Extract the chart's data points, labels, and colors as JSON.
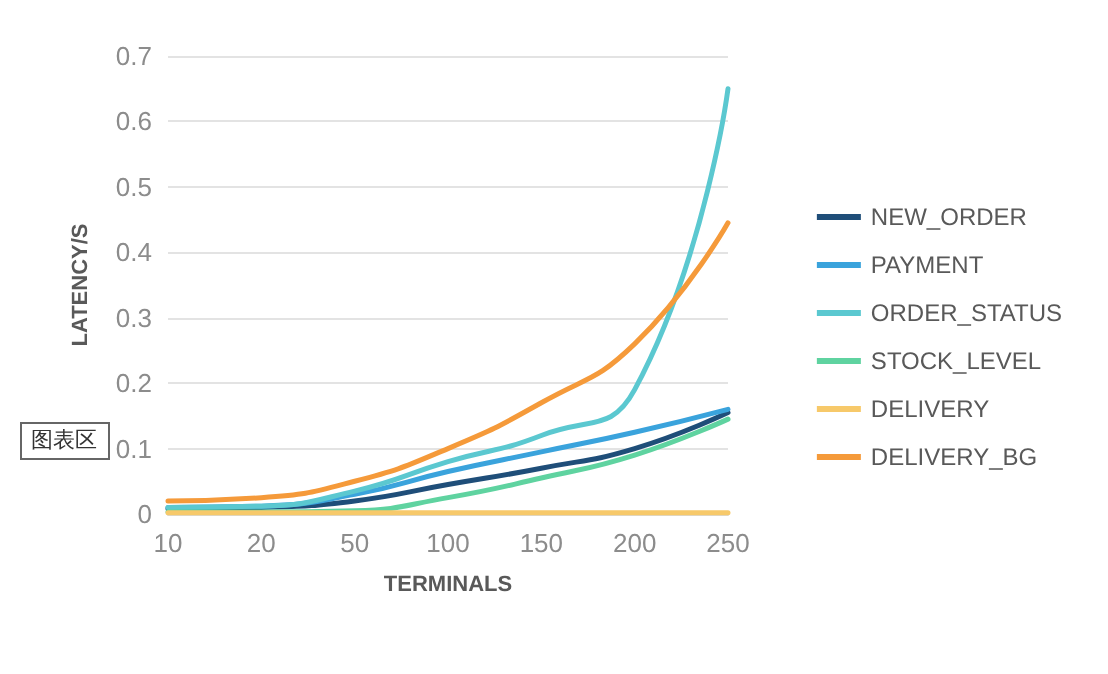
{
  "chart_data": {
    "type": "line",
    "xlabel": "TERMINALS",
    "ylabel": "LATENCY/S",
    "categories": [
      "10",
      "20",
      "50",
      "100",
      "150",
      "200",
      "250"
    ],
    "series": [
      {
        "name": "NEW_ORDER",
        "color": "#1f4e79",
        "values": [
          0.008,
          0.01,
          0.02,
          0.045,
          0.07,
          0.1,
          0.155
        ]
      },
      {
        "name": "PAYMENT",
        "color": "#3aa3dc",
        "values": [
          0.01,
          0.012,
          0.03,
          0.065,
          0.095,
          0.125,
          0.16
        ]
      },
      {
        "name": "ORDER_STATUS",
        "color": "#5bc8d0",
        "values": [
          0.01,
          0.012,
          0.035,
          0.08,
          0.12,
          0.19,
          0.65
        ]
      },
      {
        "name": "STOCK_LEVEL",
        "color": "#5fd3a0",
        "values": [
          0.003,
          0.003,
          0.005,
          0.025,
          0.055,
          0.09,
          0.145
        ]
      },
      {
        "name": "DELIVERY",
        "color": "#f7c96a",
        "values": [
          0.002,
          0.002,
          0.002,
          0.002,
          0.002,
          0.002,
          0.002
        ]
      },
      {
        "name": "DELIVERY_BG",
        "color": "#f59a3a",
        "values": [
          0.02,
          0.025,
          0.05,
          0.1,
          0.17,
          0.26,
          0.445
        ]
      }
    ],
    "ylim": [
      0,
      0.7
    ],
    "yticks": [
      0,
      0.1,
      0.2,
      0.3,
      0.4,
      0.5,
      0.6,
      0.7
    ],
    "grid": "y",
    "legend": "right",
    "marker": "none",
    "line_style": "solid",
    "annotations": [
      "图表区"
    ]
  }
}
